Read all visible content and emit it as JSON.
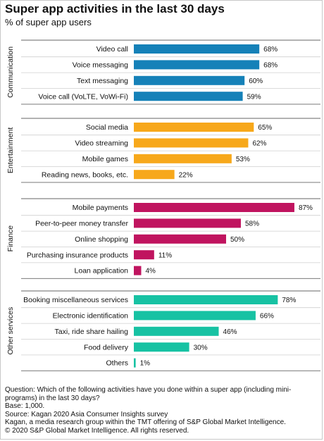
{
  "title": "Super app activities in the last 30 days",
  "subtitle": "% of super app users",
  "colors": {
    "Communication": "#1581b8",
    "Entertainment": "#f7a81b",
    "Finance": "#c0145f",
    "Other services": "#17c2a3"
  },
  "chart_data": {
    "type": "bar",
    "orientation": "horizontal",
    "xlim": [
      0,
      100
    ],
    "value_suffix": "%",
    "groups": [
      {
        "name": "Communication",
        "categories": [
          "Video call",
          "Voice messaging",
          "Text messaging",
          "Voice call (VoLTE, VoWi-Fi)"
        ],
        "values": [
          68,
          68,
          60,
          59
        ]
      },
      {
        "name": "Entertainment",
        "categories": [
          "Social media",
          "Video streaming",
          "Mobile games",
          "Reading news, books, etc."
        ],
        "values": [
          65,
          62,
          53,
          22
        ]
      },
      {
        "name": "Finance",
        "categories": [
          "Mobile payments",
          "Peer-to-peer money transfer",
          "Online shopping",
          "Purchasing insurance products",
          "Loan application"
        ],
        "values": [
          87,
          58,
          50,
          11,
          4
        ]
      },
      {
        "name": "Other services",
        "categories": [
          "Booking miscellaneous services",
          "Electronic identification",
          "Taxi, ride share hailing",
          "Food delivery",
          "Others"
        ],
        "values": [
          78,
          66,
          46,
          30,
          1
        ]
      }
    ]
  },
  "notes": [
    "Question: Which of the following activities have you done within a super app (including mini-programs) in the last 30 days?",
    "Base: 1,000.",
    "Source: Kagan 2020 Asia Consumer Insights survey",
    "Kagan, a media research group within the TMT offering of S&P Global Market Intelligence.",
    "© 2020 S&P Global Market Intelligence. All rights reserved."
  ]
}
